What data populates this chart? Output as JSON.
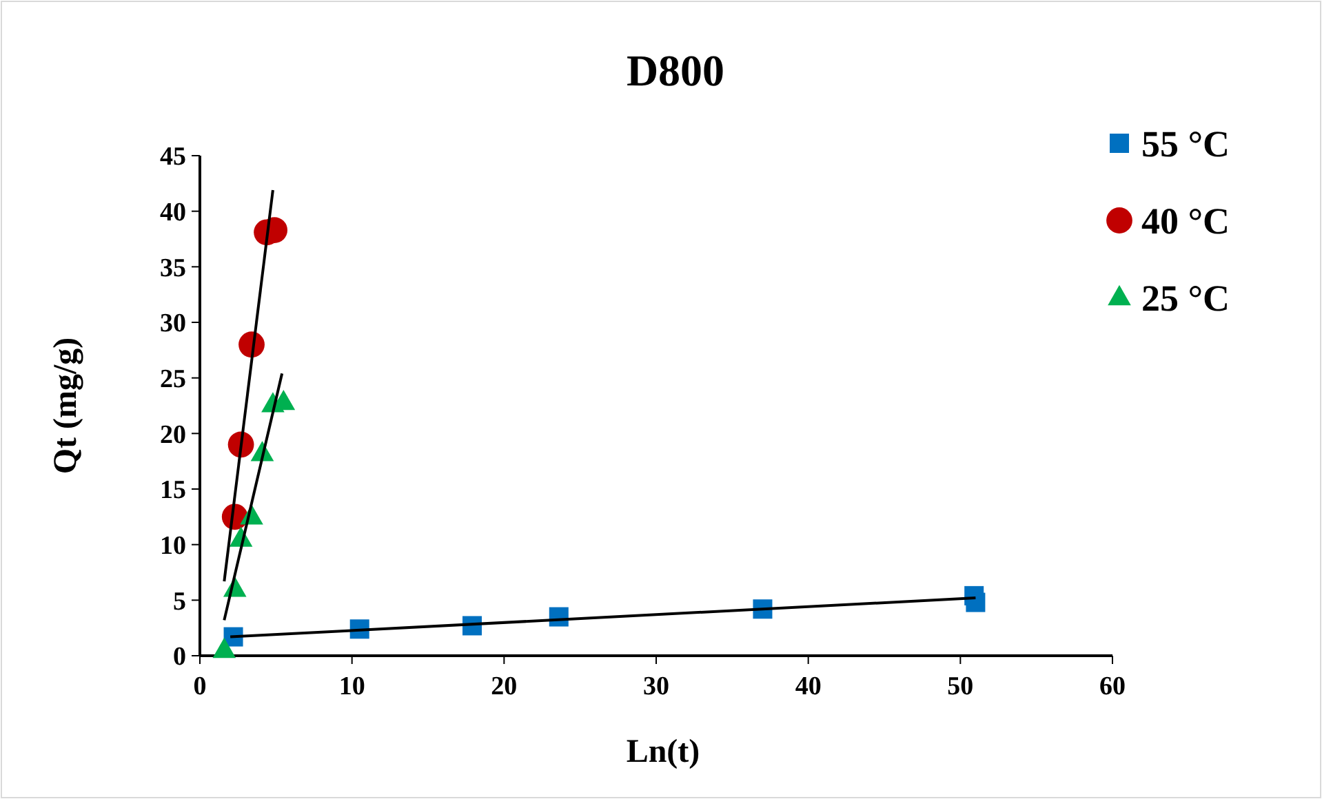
{
  "chart_data": {
    "type": "scatter",
    "title": "D800",
    "xlabel": "Ln(t)",
    "ylabel": "Qt (mg/g)",
    "xlim": [
      0,
      60
    ],
    "xticks": [
      0,
      10,
      20,
      30,
      40,
      50,
      60
    ],
    "ylim": [
      0,
      45
    ],
    "yticks": [
      0,
      5,
      10,
      15,
      20,
      25,
      30,
      35,
      40,
      45
    ],
    "grid": false,
    "legend": "right",
    "series": [
      {
        "name": "55 °C",
        "color": "#0070c0",
        "marker": "square",
        "x": [
          2.2,
          10.5,
          17.9,
          23.6,
          37.0,
          50.9,
          51.0
        ],
        "values": [
          1.7,
          2.4,
          2.7,
          3.5,
          4.2,
          5.4,
          4.8
        ]
      },
      {
        "name": "40 °C",
        "color": "#c00000",
        "marker": "circle",
        "x": [
          2.3,
          2.7,
          3.4,
          4.4,
          4.9
        ],
        "values": [
          12.5,
          19.0,
          28.0,
          38.1,
          38.3
        ]
      },
      {
        "name": "25 °C",
        "color": "#00b050",
        "marker": "triangle",
        "x": [
          1.6,
          2.3,
          2.7,
          3.4,
          4.1,
          4.8,
          5.5
        ],
        "values": [
          0.5,
          6.0,
          10.5,
          12.5,
          18.2,
          22.6,
          22.8
        ]
      },
      {
        "type": "line",
        "color": "#000000",
        "x": [
          2.0,
          51.0
        ],
        "values": [
          1.7,
          5.2
        ]
      },
      {
        "type": "line",
        "color": "#000000",
        "x": [
          1.6,
          4.8
        ],
        "values": [
          6.7,
          41.9
        ]
      },
      {
        "type": "line",
        "color": "#000000",
        "x": [
          1.6,
          5.4
        ],
        "values": [
          3.2,
          25.4
        ]
      }
    ]
  }
}
